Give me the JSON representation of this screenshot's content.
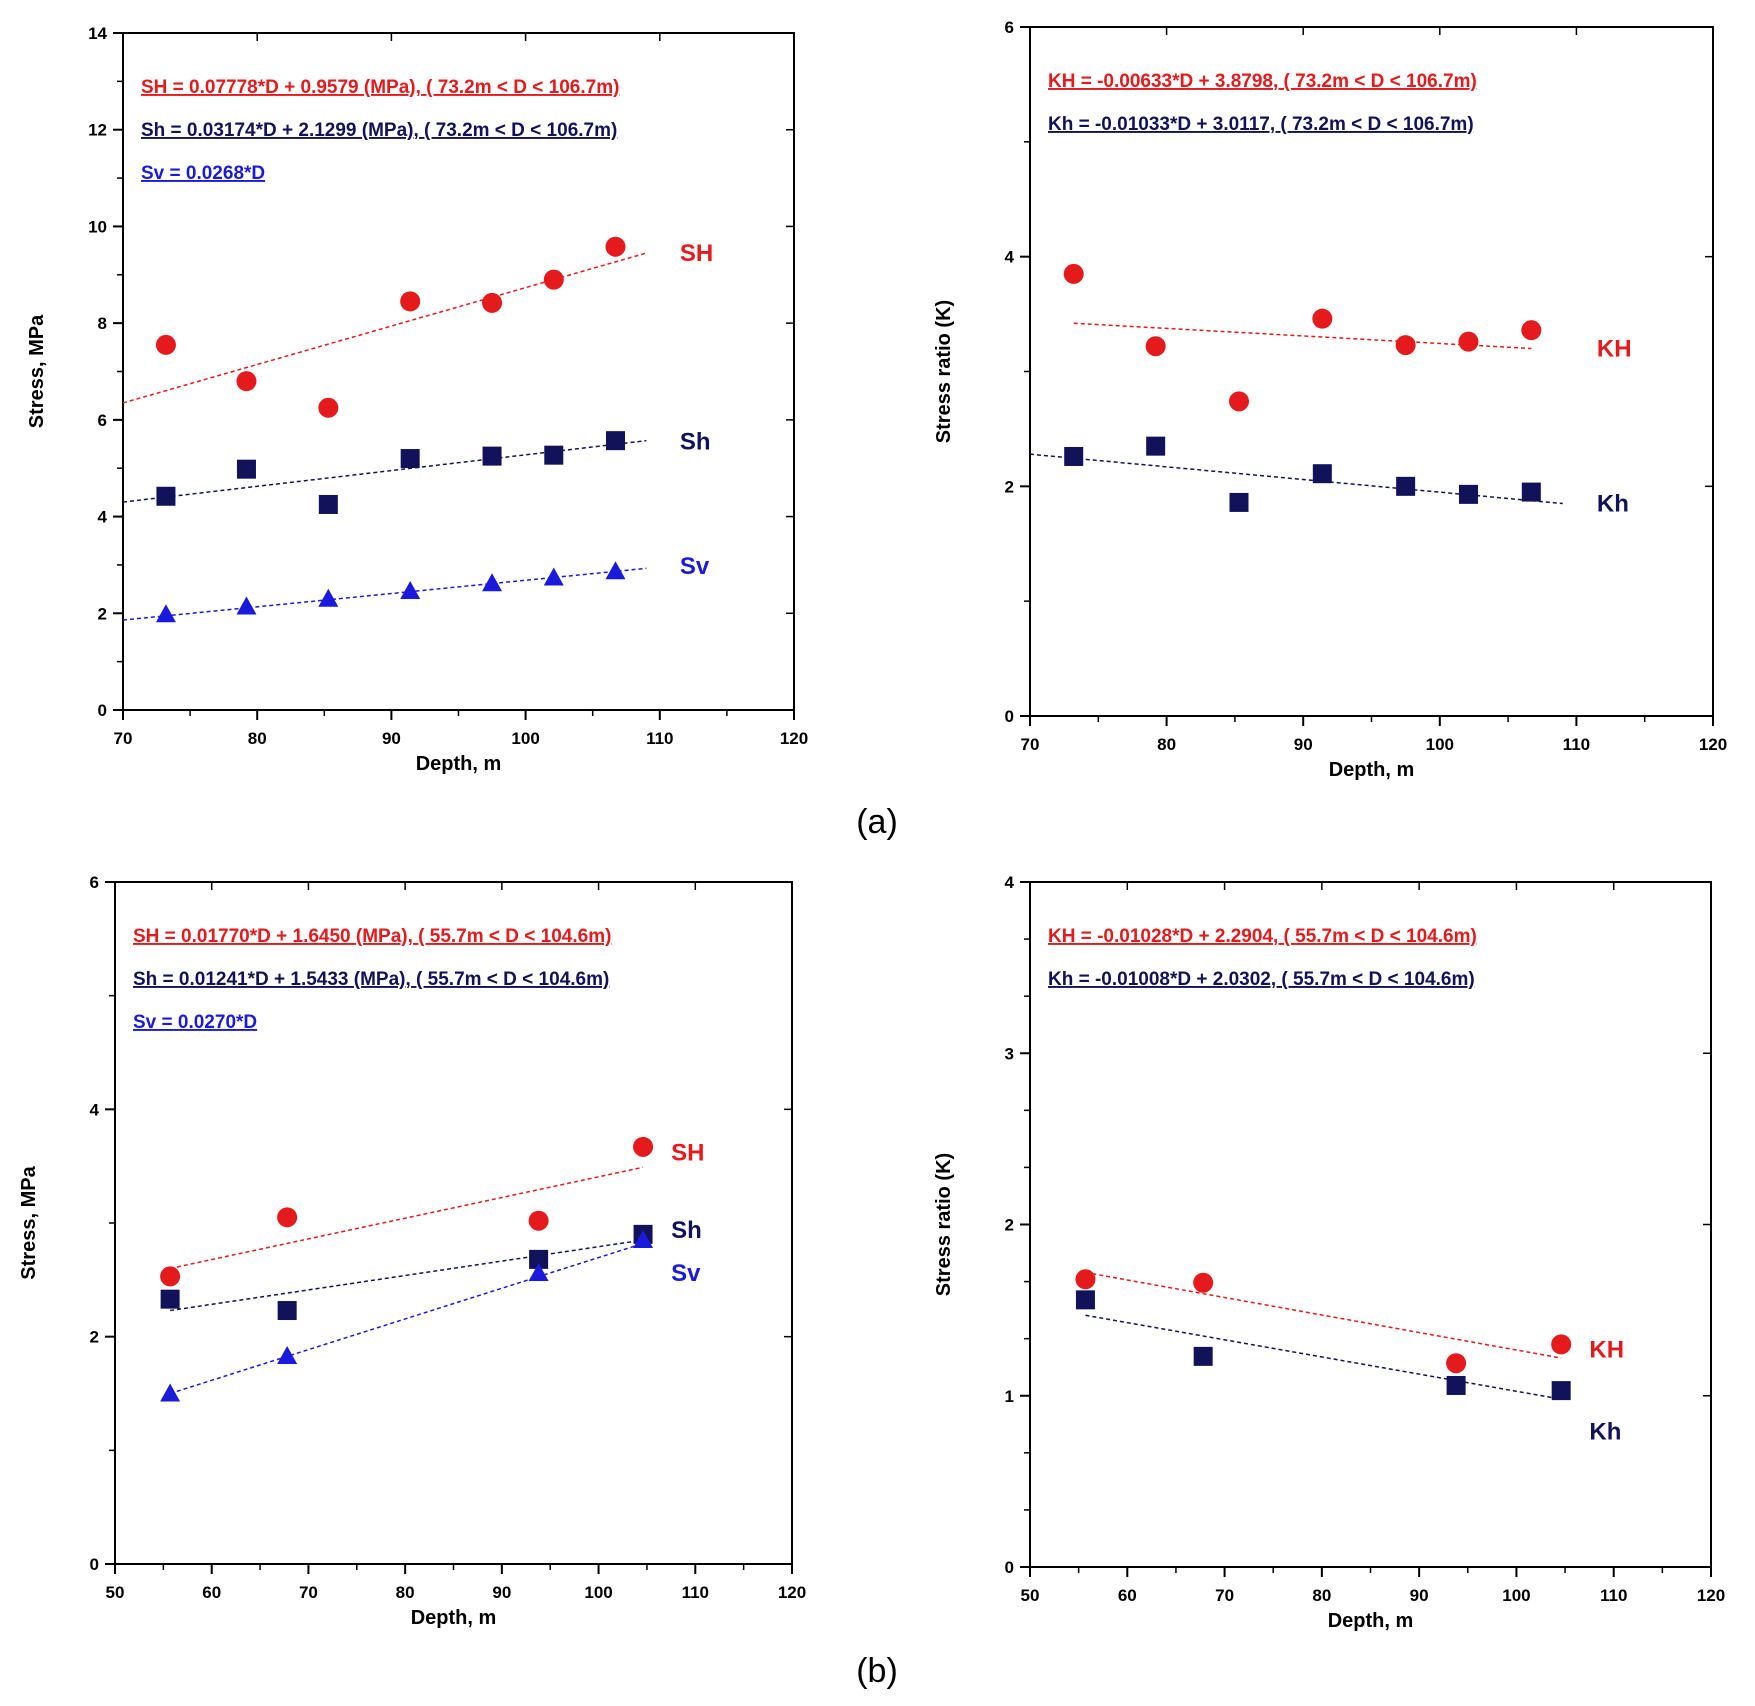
{
  "figure": {
    "colors": {
      "SH": "#e41a1c",
      "Sh": "#12125a",
      "Sv": "#1a1add",
      "frame": "#000000"
    },
    "panels": [
      {
        "caption": "(a)",
        "chart_data": [
          {
            "type": "scatter",
            "xlabel": "Depth, m",
            "ylabel": "Stress, MPa",
            "xlim": [
              70,
              120
            ],
            "ylim": [
              0,
              14
            ],
            "xticks": [
              70,
              80,
              90,
              100,
              110,
              120
            ],
            "yticks": [
              0,
              2,
              4,
              6,
              8,
              10,
              12,
              14
            ],
            "yminor": 1,
            "equations": [
              {
                "text": "SH = 0.07778*D + 0.9579 (MPa),  ( 73.2m < D < 106.7m)",
                "color_key": "SH"
              },
              {
                "text": "Sh = 0.03174*D + 2.1299 (MPa),  ( 73.2m < D < 106.7m)",
                "color_key": "Sh"
              },
              {
                "text": "Sv = 0.0268*D ",
                "color_key": "Sv"
              }
            ],
            "series": [
              {
                "name": "SH",
                "color_key": "SH",
                "marker": "circle",
                "x": [
                  73.2,
                  79.2,
                  85.3,
                  91.4,
                  97.5,
                  102.1,
                  106.7
                ],
                "y": [
                  7.55,
                  6.8,
                  6.25,
                  8.45,
                  8.42,
                  8.9,
                  9.58
                ],
                "fit": [
                  [
                    70,
                    6.35
                  ],
                  [
                    109,
                    9.45
                  ]
                ],
                "label_pos": [
                  111.5,
                  9.45
                ]
              },
              {
                "name": "Sh",
                "color_key": "Sh",
                "marker": "square",
                "x": [
                  73.2,
                  79.2,
                  85.3,
                  91.4,
                  97.5,
                  102.1,
                  106.7
                ],
                "y": [
                  4.42,
                  4.98,
                  4.25,
                  5.2,
                  5.25,
                  5.27,
                  5.57
                ],
                "fit": [
                  [
                    70,
                    4.3
                  ],
                  [
                    109,
                    5.57
                  ]
                ],
                "label_pos": [
                  111.5,
                  5.55
                ]
              },
              {
                "name": "Sv",
                "color_key": "Sv",
                "marker": "triangle",
                "x": [
                  73.2,
                  79.2,
                  85.3,
                  91.4,
                  97.5,
                  102.1,
                  106.7
                ],
                "y": [
                  1.98,
                  2.14,
                  2.3,
                  2.46,
                  2.62,
                  2.74,
                  2.87
                ],
                "fit": [
                  [
                    70,
                    1.86
                  ],
                  [
                    109,
                    2.93
                  ]
                ],
                "label_pos": [
                  111.5,
                  2.98
                ]
              }
            ]
          },
          {
            "type": "scatter",
            "xlabel": "Depth, m",
            "ylabel": "Stress ratio (K)",
            "xlim": [
              70,
              120
            ],
            "ylim": [
              0,
              6
            ],
            "xticks": [
              70,
              80,
              90,
              100,
              110,
              120
            ],
            "yticks": [
              0,
              2,
              4,
              6
            ],
            "yminor": 1,
            "equations": [
              {
                "text": "KH = -0.00633*D + 3.8798,  ( 73.2m < D < 106.7m)",
                "color_key": "SH"
              },
              {
                "text": "Kh = -0.01033*D + 3.0117,  ( 73.2m < D < 106.7m)",
                "color_key": "Sh"
              }
            ],
            "series": [
              {
                "name": "KH",
                "color_key": "SH",
                "marker": "circle",
                "x": [
                  73.2,
                  79.2,
                  85.3,
                  91.4,
                  97.5,
                  102.1,
                  106.7
                ],
                "y": [
                  3.85,
                  3.22,
                  2.74,
                  3.46,
                  3.23,
                  3.26,
                  3.36
                ],
                "fit": [
                  [
                    73.2,
                    3.42
                  ],
                  [
                    106.7,
                    3.2
                  ]
                ],
                "label_pos": [
                  111.5,
                  3.2
                ]
              },
              {
                "name": "Kh",
                "color_key": "Sh",
                "marker": "square",
                "x": [
                  73.2,
                  79.2,
                  85.3,
                  91.4,
                  97.5,
                  102.1,
                  106.7
                ],
                "y": [
                  2.26,
                  2.35,
                  1.86,
                  2.11,
                  2.0,
                  1.93,
                  1.95
                ],
                "fit": [
                  [
                    70,
                    2.28
                  ],
                  [
                    109,
                    1.85
                  ]
                ],
                "label_pos": [
                  111.5,
                  1.85
                ]
              }
            ]
          }
        ]
      },
      {
        "caption": "(b)",
        "chart_data": [
          {
            "type": "scatter",
            "xlabel": "Depth, m",
            "ylabel": "Stress, MPa",
            "xlim": [
              50,
              120
            ],
            "ylim": [
              0,
              6
            ],
            "xticks": [
              50,
              60,
              70,
              80,
              90,
              100,
              110,
              120
            ],
            "yticks": [
              0,
              2,
              4,
              6
            ],
            "yminor": 1,
            "equations": [
              {
                "text": "SH = 0.01770*D + 1.6450 (MPa),  ( 55.7m < D < 104.6m)",
                "color_key": "SH"
              },
              {
                "text": "Sh = 0.01241*D + 1.5433 (MPa),  ( 55.7m < D < 104.6m)",
                "color_key": "Sh"
              },
              {
                "text": "Sv = 0.0270*D ",
                "color_key": "Sv"
              }
            ],
            "series": [
              {
                "name": "SH",
                "color_key": "SH",
                "marker": "circle",
                "x": [
                  55.7,
                  67.8,
                  93.8,
                  104.6
                ],
                "y": [
                  2.53,
                  3.05,
                  3.02,
                  3.67
                ],
                "fit": [
                  [
                    55.7,
                    2.6
                  ],
                  [
                    104.6,
                    3.49
                  ]
                ],
                "label_pos": [
                  107.5,
                  3.62
                ]
              },
              {
                "name": "Sh",
                "color_key": "Sh",
                "marker": "square",
                "x": [
                  55.7,
                  67.8,
                  93.8,
                  104.6
                ],
                "y": [
                  2.33,
                  2.23,
                  2.68,
                  2.9
                ],
                "fit": [
                  [
                    55.7,
                    2.23
                  ],
                  [
                    104.6,
                    2.85
                  ]
                ],
                "label_pos": [
                  107.5,
                  2.94
                ]
              },
              {
                "name": "Sv",
                "color_key": "Sv",
                "marker": "triangle",
                "x": [
                  55.7,
                  67.8,
                  93.8,
                  104.6
                ],
                "y": [
                  1.5,
                  1.83,
                  2.56,
                  2.85
                ],
                "fit": [
                  [
                    55.7,
                    1.5
                  ],
                  [
                    104.6,
                    2.82
                  ]
                ],
                "label_pos": [
                  107.5,
                  2.56
                ]
              }
            ]
          },
          {
            "type": "scatter",
            "xlabel": "Depth, m",
            "ylabel": "Stress ratio (K)",
            "xlim": [
              50,
              120
            ],
            "ylim": [
              0,
              4
            ],
            "xticks": [
              50,
              60,
              70,
              80,
              90,
              100,
              110,
              120
            ],
            "yticks": [
              0,
              1,
              2,
              3,
              4
            ],
            "yminor": 2,
            "equations": [
              {
                "text": "KH = -0.01028*D + 2.2904,  ( 55.7m < D < 104.6m)",
                "color_key": "SH"
              },
              {
                "text": "Kh = -0.01008*D + 2.0302,  ( 55.7m < D < 104.6m)",
                "color_key": "Sh"
              }
            ],
            "series": [
              {
                "name": "KH",
                "color_key": "SH",
                "marker": "circle",
                "x": [
                  55.7,
                  67.8,
                  93.8,
                  104.6
                ],
                "y": [
                  1.68,
                  1.66,
                  1.19,
                  1.3
                ],
                "fit": [
                  [
                    55.7,
                    1.72
                  ],
                  [
                    104.6,
                    1.22
                  ]
                ],
                "label_pos": [
                  107.5,
                  1.27
                ]
              },
              {
                "name": "Kh",
                "color_key": "Sh",
                "marker": "square",
                "x": [
                  55.7,
                  67.8,
                  93.8,
                  104.6
                ],
                "y": [
                  1.56,
                  1.23,
                  1.06,
                  1.03
                ],
                "fit": [
                  [
                    55.7,
                    1.47
                  ],
                  [
                    104.6,
                    0.98
                  ]
                ],
                "label_pos": [
                  107.5,
                  0.79
                ]
              }
            ]
          }
        ]
      }
    ]
  }
}
